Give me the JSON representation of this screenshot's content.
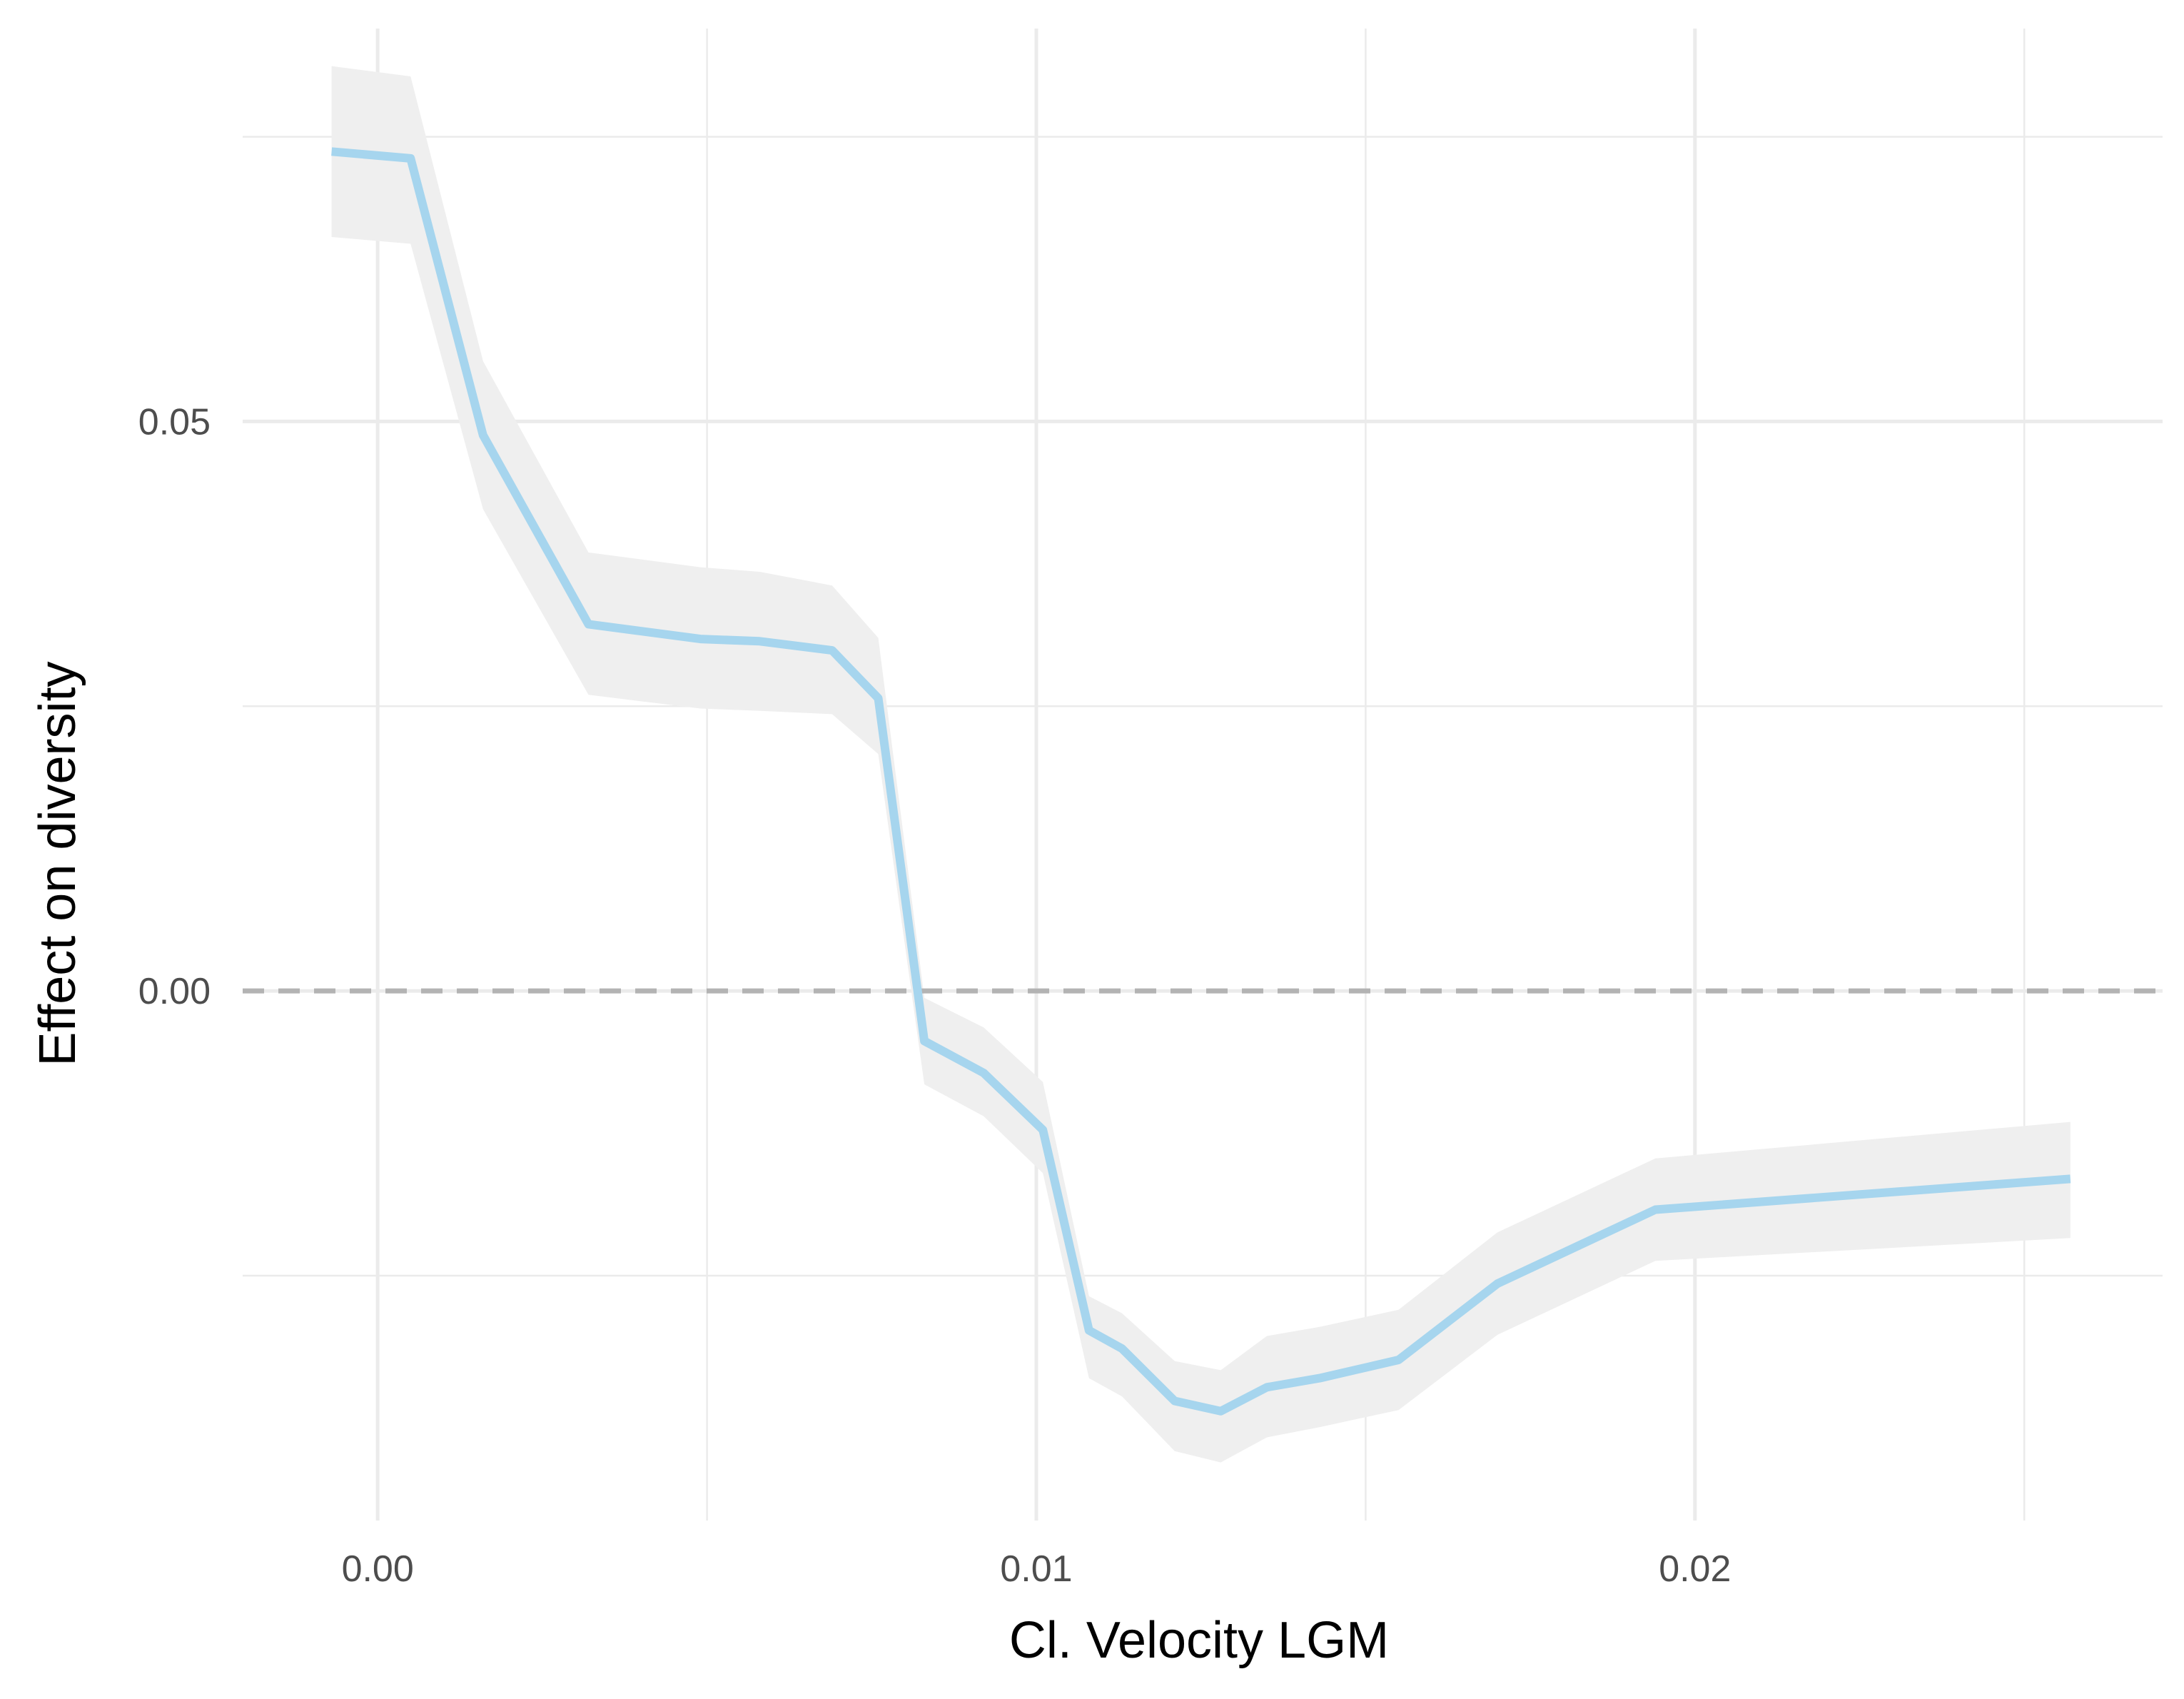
{
  "chart_data": {
    "type": "line",
    "title": "",
    "xlabel": "Cl. Velocity LGM",
    "ylabel": "Effect on diversity",
    "xlim": [
      -0.00205,
      0.0271
    ],
    "ylim": [
      -0.0465,
      0.0845
    ],
    "x_ticks": [
      0.0,
      0.01,
      0.02
    ],
    "x_tick_labels": [
      "0.00",
      "0.01",
      "0.02"
    ],
    "y_ticks": [
      0.0,
      0.05
    ],
    "y_tick_labels": [
      "0.00",
      "0.05"
    ],
    "x_minor_grid": [
      0.005,
      0.015,
      0.025
    ],
    "y_minor_grid": [
      -0.025,
      0.025,
      0.075
    ],
    "grid": true,
    "reference_line": {
      "y": 0,
      "style": "dashed",
      "color": "#b3b3b3"
    },
    "series": [
      {
        "color": "#a6d5ee",
        "band_color": "#efefef",
        "x": [
          -0.0007,
          0.0005,
          0.0016,
          0.0032,
          0.0049,
          0.0058,
          0.0069,
          0.0076,
          0.0083,
          0.0092,
          0.0101,
          0.0108,
          0.0113,
          0.0121,
          0.0128,
          0.0135,
          0.0143,
          0.0155,
          0.017,
          0.0194,
          0.0257
        ],
        "y": [
          0.0737,
          0.0731,
          0.0488,
          0.0322,
          0.0309,
          0.0307,
          0.0299,
          0.0257,
          -0.0044,
          -0.0072,
          -0.0122,
          -0.0298,
          -0.0314,
          -0.036,
          -0.0369,
          -0.0348,
          -0.034,
          -0.0324,
          -0.0257,
          -0.0192,
          -0.0165
        ],
        "lower": [
          0.0662,
          0.0656,
          0.0423,
          0.026,
          0.0248,
          0.0246,
          0.0243,
          0.0208,
          -0.0082,
          -0.011,
          -0.016,
          -0.034,
          -0.0356,
          -0.0404,
          -0.0414,
          -0.0392,
          -0.0383,
          -0.0368,
          -0.0302,
          -0.0237,
          -0.0217
        ],
        "upper": [
          0.0812,
          0.0803,
          0.0553,
          0.0385,
          0.0372,
          0.0368,
          0.0356,
          0.031,
          -0.0006,
          -0.0032,
          -0.008,
          -0.0268,
          -0.0283,
          -0.0325,
          -0.0333,
          -0.0303,
          -0.0295,
          -0.028,
          -0.0212,
          -0.0147,
          -0.0115
        ]
      }
    ]
  }
}
